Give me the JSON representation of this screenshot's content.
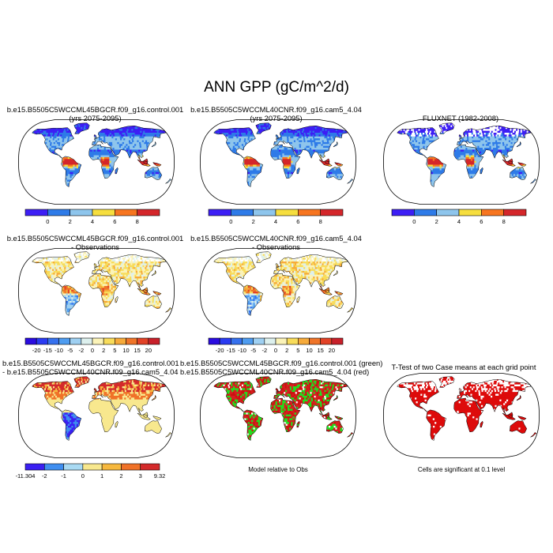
{
  "title": "ANN GPP (gC/m^2/d)",
  "panels": [
    {
      "line1": "b.e15.B5505C5WCCML45BGCR.f09_g16.control.001",
      "line2": "(yrs 2075-2095)",
      "kind": "abs"
    },
    {
      "line1": "b.e15.B5505C5WCCML40CNR.f09_g16.cam5_4.04",
      "line2": "(yrs 2075-2095)",
      "kind": "abs"
    },
    {
      "line1": "FLUXNET (1982-2008)",
      "line2": "",
      "kind": "abs-obs"
    },
    {
      "line1": "b.e15.B5505C5WCCML45BGCR.f09_g16.control.001",
      "line2": "- Observations",
      "kind": "diff"
    },
    {
      "line1": "b.e15.B5505C5WCCML40CNR.f09_g16.cam5_4.04",
      "line2": "- Observations",
      "kind": "diff2"
    },
    {
      "line1": "b.e15.B5505C5WCCML45BGCR.f09_g16.control.001",
      "line2": "- b.e15.B5505C5WCCML40CNR.f09_g16.cam5_4.04",
      "kind": "casediff"
    },
    {
      "line1": "b.e15.B5505C5WCCML45BGCR.f09_g16.control.001 (green)",
      "line2": "b.e15.B5505C5WCCML40CNR.f09_g16.cam5_4.04 (red)",
      "kind": "rel"
    },
    {
      "line1": "T-Test of two Case means at each grid point",
      "line2": "",
      "kind": "ttest"
    }
  ],
  "colorbars": {
    "abs": {
      "colors": [
        "#3d1ef5",
        "#2e7be8",
        "#8ec5ec",
        "#f6de3e",
        "#f7751f",
        "#d4262a"
      ],
      "labels": [
        "0",
        "2",
        "4",
        "6",
        "8"
      ]
    },
    "diff": {
      "colors": [
        "#2a0ce0",
        "#2a3bf2",
        "#3671ee",
        "#4e9cf0",
        "#9fd0f2",
        "#ddf0ee",
        "#fbf3b8",
        "#f8dc5a",
        "#f6aa3a",
        "#ef7428",
        "#e24226",
        "#c8202a"
      ],
      "labels": [
        "-20",
        "-15",
        "-10",
        "-5",
        "-2",
        "0",
        "2",
        "5",
        "10",
        "15",
        "20"
      ]
    },
    "casediff": {
      "colors": [
        "#3a1ff2",
        "#3f8ef0",
        "#a9daf3",
        "#f8e88e",
        "#f6b83e",
        "#f07228",
        "#d42a2b"
      ],
      "labels": [
        "-11.304",
        "-2",
        "-1",
        "0",
        "1",
        "2",
        "3",
        "9.32"
      ]
    }
  },
  "footnotes": {
    "rel": "Model relative to Obs",
    "ttest": "Cells are significant at 0.1 level"
  }
}
